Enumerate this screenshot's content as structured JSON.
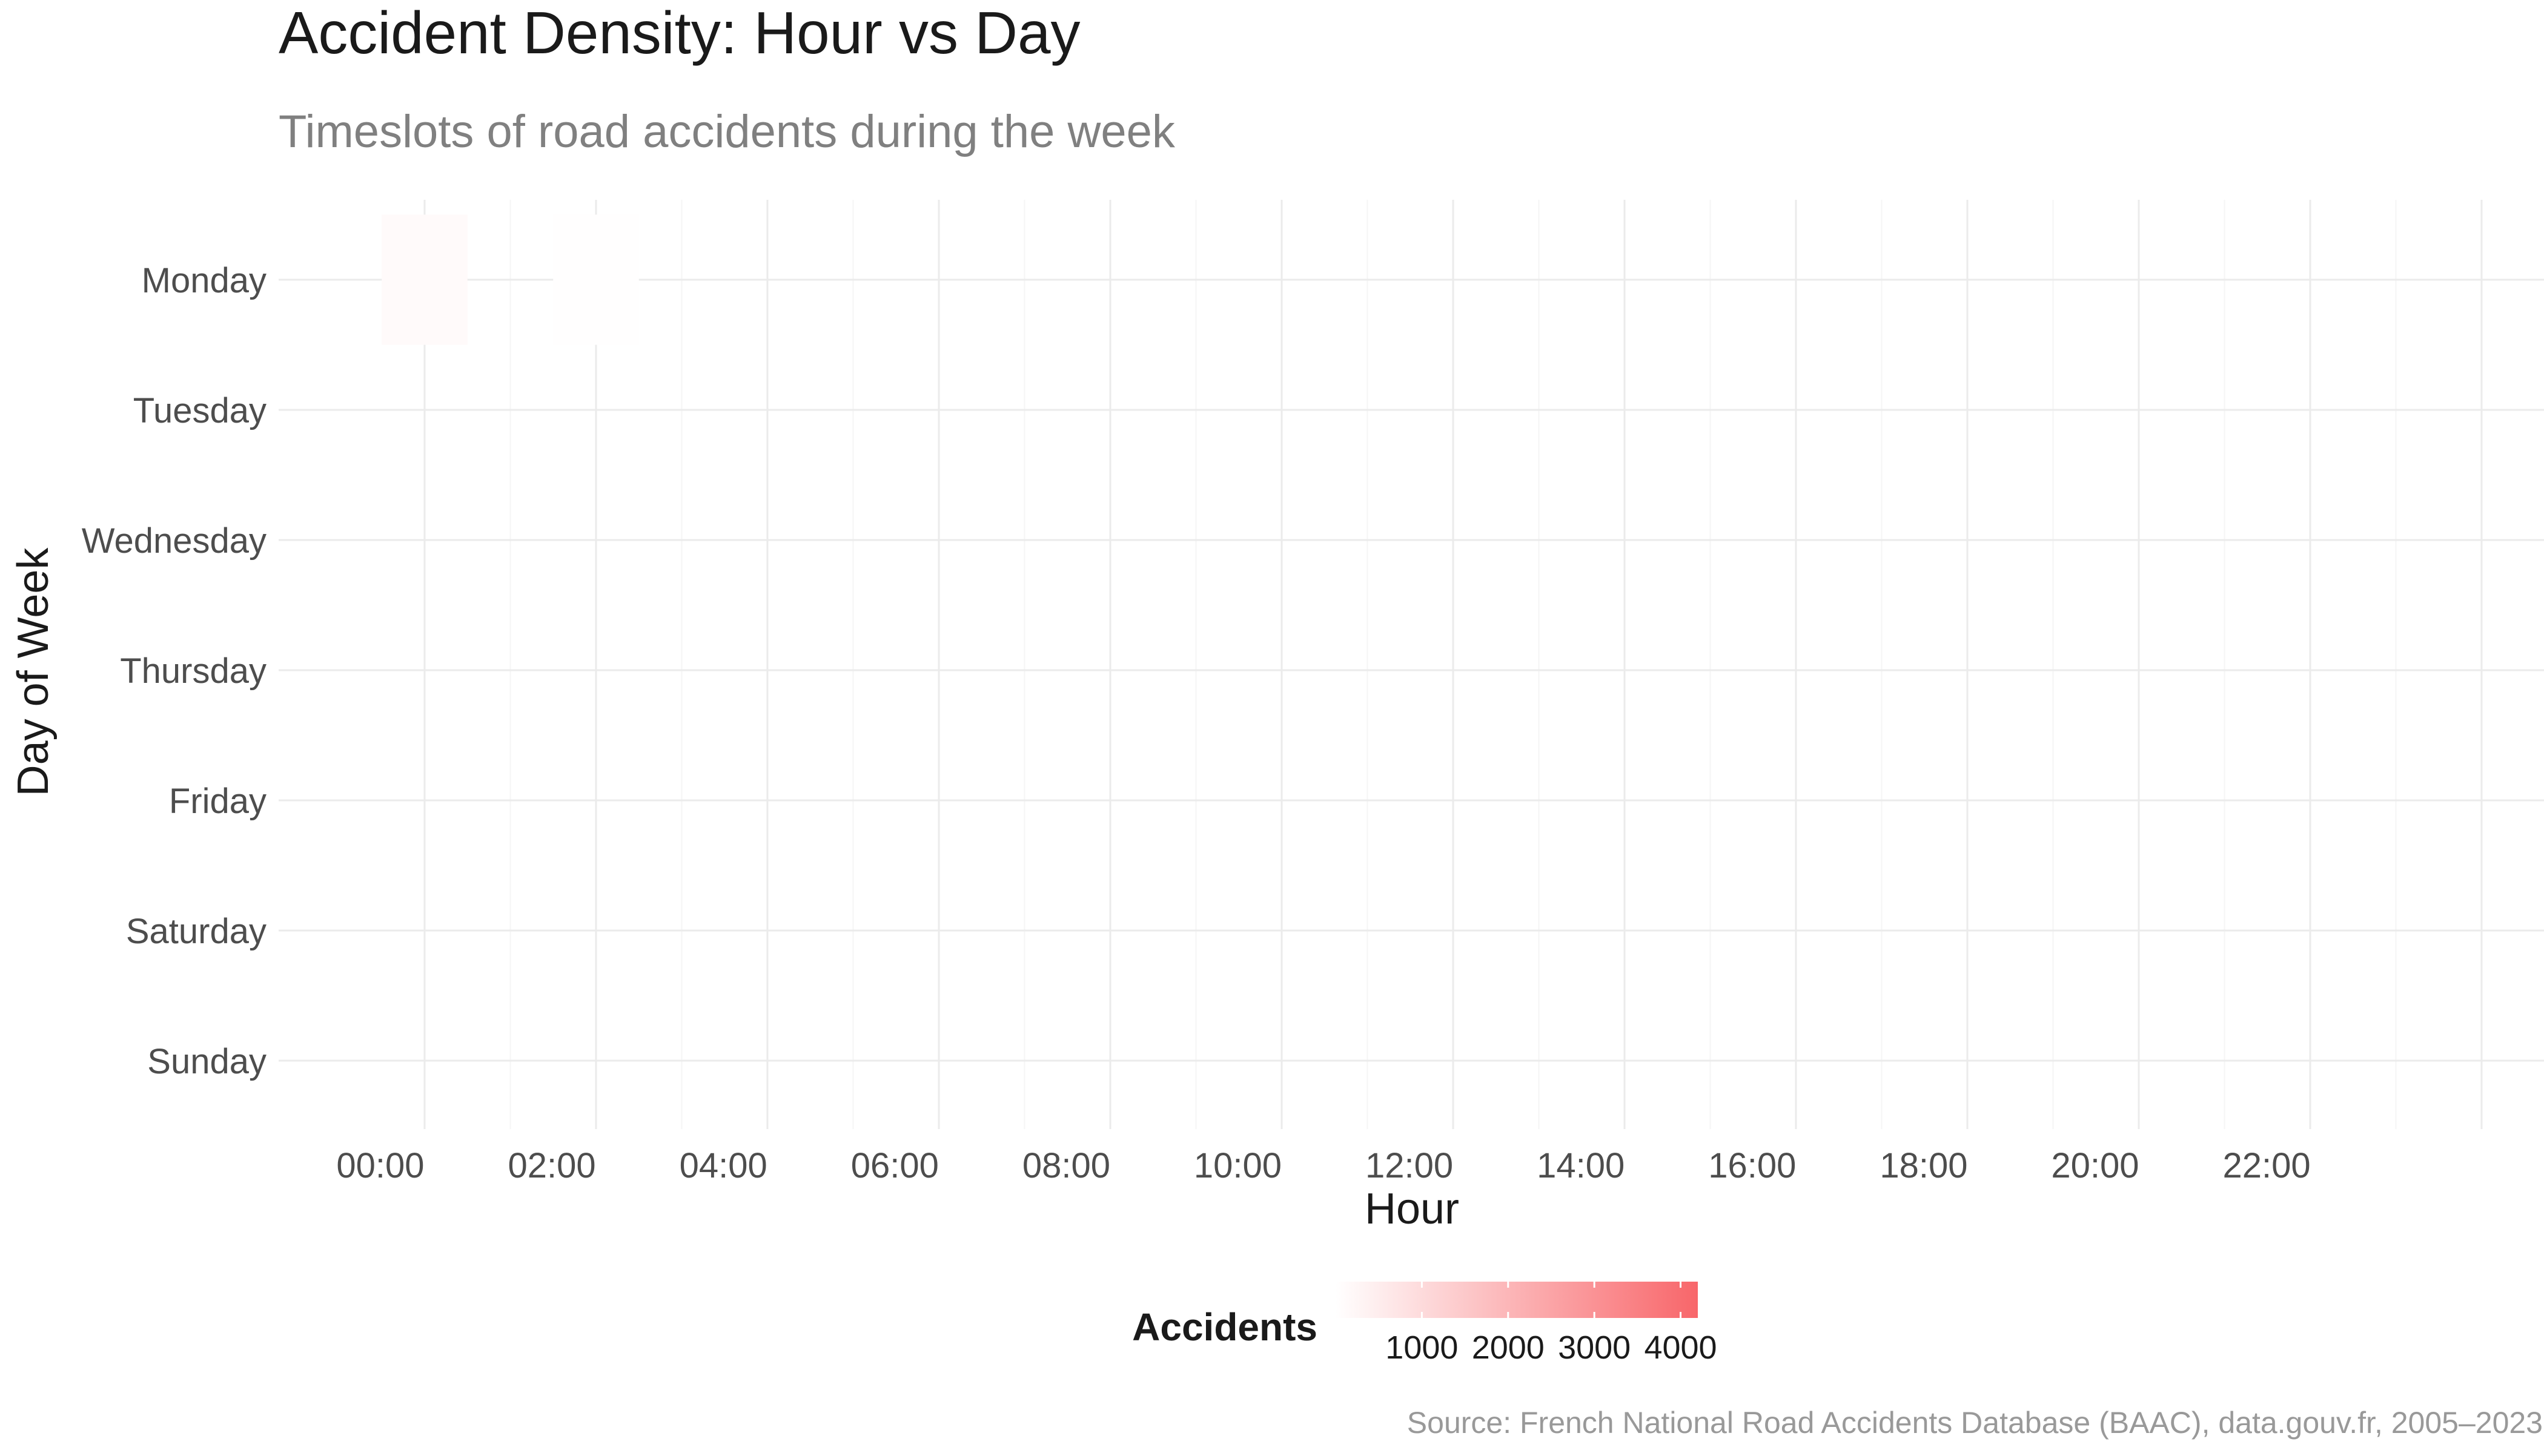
{
  "chart_data": {
    "type": "heatmap",
    "title": "Accident Density: Hour vs Day",
    "subtitle": "Timeslots of road accidents during the week",
    "xlabel": "Hour",
    "ylabel": "Day of Week",
    "caption": "Source: French National Road Accidents Database (BAAC), data.gouv.fr, 2005–2023",
    "x_ticks": [
      "00:00",
      "02:00",
      "04:00",
      "06:00",
      "08:00",
      "10:00",
      "12:00",
      "14:00",
      "16:00",
      "18:00",
      "20:00",
      "22:00"
    ],
    "y_categories": [
      "Monday",
      "Tuesday",
      "Wednesday",
      "Thursday",
      "Friday",
      "Saturday",
      "Sunday"
    ],
    "grid": true,
    "legend": {
      "title": "Accidents",
      "position": "bottom",
      "breaks": [
        "1000",
        "2000",
        "3000",
        "4000"
      ],
      "range": [
        0,
        4200
      ],
      "color_low": "#ffffff",
      "color_high": "#f8666a"
    },
    "cells": [
      {
        "day": "Monday",
        "hour": 0,
        "value": 150
      },
      {
        "day": "Monday",
        "hour": 2,
        "value": 40
      }
    ]
  }
}
